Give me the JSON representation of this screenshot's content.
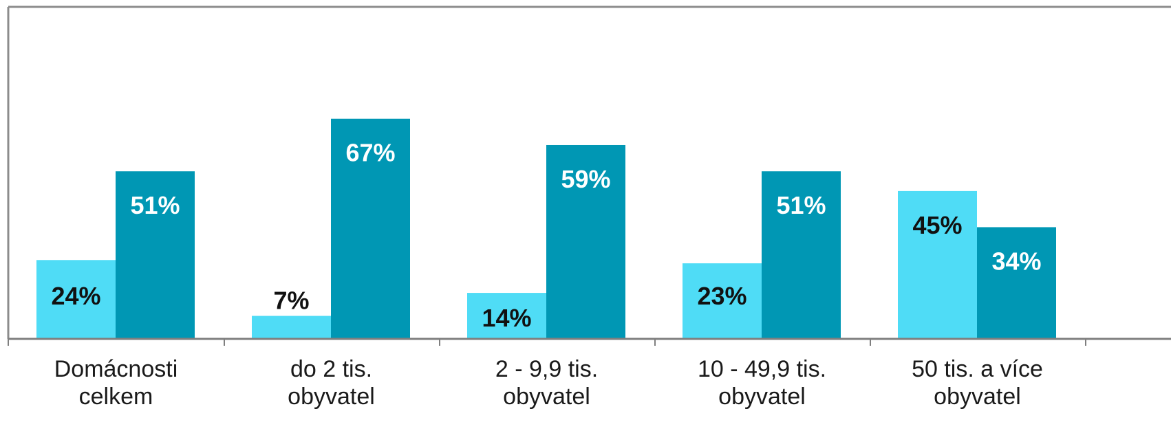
{
  "chart_data": {
    "type": "bar",
    "categories": [
      [
        "Domácnosti",
        "celkem"
      ],
      [
        "do 2 tis.",
        "obyvatel"
      ],
      [
        "2 - 9,9 tis.",
        "obyvatel"
      ],
      [
        "10 - 49,9 tis.",
        "obyvatel"
      ],
      [
        "50 tis. a více",
        "obyvatel"
      ]
    ],
    "series": [
      {
        "values": [
          24,
          7,
          14,
          23,
          45
        ],
        "labels": [
          "24%",
          "7%",
          "14%",
          "23%",
          "45%"
        ],
        "color": "#4fdcf6",
        "label_color": "#111111"
      },
      {
        "values": [
          51,
          67,
          59,
          51,
          34
        ],
        "labels": [
          "51%",
          "67%",
          "59%",
          "51%",
          "34%"
        ],
        "color": "#0097b4",
        "label_color": "#ffffff"
      }
    ],
    "ylim": [
      0,
      100
    ],
    "grid": false,
    "legend": "none",
    "axis_color": "#7f7f7f",
    "frame_color": "#8c8c8c"
  }
}
